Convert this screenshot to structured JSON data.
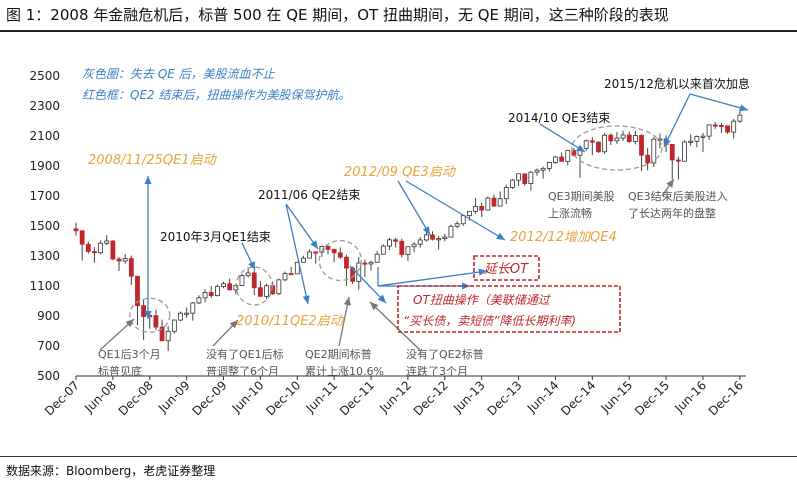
{
  "figure": {
    "title": "图 1：2008 年金融危机后，标普 500 在 QE 期间，OT 扭曲期间，无 QE 期间，这三种阶段的表现",
    "source": "数据来源：Bloomberg，老虎证券整理"
  },
  "colors": {
    "up": "#ffffff",
    "down": "#c0272d",
    "wick": "#444444",
    "blue_annotation": "#3d7fc6",
    "orange_annotation": "#e8a33a",
    "red_annotation": "#c0272d",
    "gray_annotation": "#555555",
    "dashed_circle": "#9a9a9a"
  },
  "chart_data": {
    "type": "candlestick",
    "title": "",
    "xlabel": "",
    "ylabel": "",
    "ylim": [
      500,
      2500
    ],
    "yticks": [
      500,
      700,
      900,
      1100,
      1300,
      1500,
      1700,
      1900,
      2100,
      2300,
      2500
    ],
    "xlim": [
      "2007-12",
      "2017-01"
    ],
    "xticks": [
      {
        "date": "2007-12",
        "label": "Dec-07"
      },
      {
        "date": "2008-06",
        "label": "Jun-08"
      },
      {
        "date": "2008-12",
        "label": "Dec-08"
      },
      {
        "date": "2009-06",
        "label": "Jun-09"
      },
      {
        "date": "2009-12",
        "label": "Dec-09"
      },
      {
        "date": "2010-06",
        "label": "Jun-10"
      },
      {
        "date": "2010-12",
        "label": "Dec-10"
      },
      {
        "date": "2011-06",
        "label": "Jun-11"
      },
      {
        "date": "2011-12",
        "label": "Dec-11"
      },
      {
        "date": "2012-06",
        "label": "Jun-12"
      },
      {
        "date": "2012-12",
        "label": "Dec-12"
      },
      {
        "date": "2013-06",
        "label": "Jun-13"
      },
      {
        "date": "2013-12",
        "label": "Dec-13"
      },
      {
        "date": "2014-06",
        "label": "Jun-14"
      },
      {
        "date": "2014-12",
        "label": "Dec-14"
      },
      {
        "date": "2015-06",
        "label": "Jun-15"
      },
      {
        "date": "2015-12",
        "label": "Dec-15"
      },
      {
        "date": "2016-06",
        "label": "Jun-16"
      },
      {
        "date": "2016-12",
        "label": "Dec-16"
      }
    ],
    "ohlc": [
      {
        "date": "2007-12",
        "o": 1481,
        "h": 1523,
        "l": 1435,
        "c": 1468
      },
      {
        "date": "2008-01",
        "o": 1468,
        "h": 1471,
        "l": 1270,
        "c": 1378
      },
      {
        "date": "2008-02",
        "o": 1378,
        "h": 1396,
        "l": 1316,
        "c": 1330
      },
      {
        "date": "2008-03",
        "o": 1330,
        "h": 1359,
        "l": 1256,
        "c": 1322
      },
      {
        "date": "2008-04",
        "o": 1322,
        "h": 1404,
        "l": 1312,
        "c": 1385
      },
      {
        "date": "2008-05",
        "o": 1385,
        "h": 1440,
        "l": 1373,
        "c": 1400
      },
      {
        "date": "2008-06",
        "o": 1400,
        "h": 1405,
        "l": 1272,
        "c": 1280
      },
      {
        "date": "2008-07",
        "o": 1280,
        "h": 1293,
        "l": 1200,
        "c": 1267
      },
      {
        "date": "2008-08",
        "o": 1267,
        "h": 1313,
        "l": 1249,
        "c": 1283
      },
      {
        "date": "2008-09",
        "o": 1283,
        "h": 1303,
        "l": 1107,
        "c": 1165
      },
      {
        "date": "2008-10",
        "o": 1165,
        "h": 1167,
        "l": 840,
        "c": 969
      },
      {
        "date": "2008-11",
        "o": 969,
        "h": 1007,
        "l": 741,
        "c": 896
      },
      {
        "date": "2008-12",
        "o": 896,
        "h": 918,
        "l": 815,
        "c": 903
      },
      {
        "date": "2009-01",
        "o": 903,
        "h": 943,
        "l": 805,
        "c": 826
      },
      {
        "date": "2009-02",
        "o": 826,
        "h": 876,
        "l": 735,
        "c": 735
      },
      {
        "date": "2009-03",
        "o": 735,
        "h": 832,
        "l": 667,
        "c": 798
      },
      {
        "date": "2009-04",
        "o": 798,
        "h": 877,
        "l": 783,
        "c": 873
      },
      {
        "date": "2009-05",
        "o": 873,
        "h": 930,
        "l": 866,
        "c": 919
      },
      {
        "date": "2009-06",
        "o": 919,
        "h": 956,
        "l": 888,
        "c": 919
      },
      {
        "date": "2009-07",
        "o": 919,
        "h": 993,
        "l": 869,
        "c": 987
      },
      {
        "date": "2009-08",
        "o": 987,
        "h": 1039,
        "l": 979,
        "c": 1021
      },
      {
        "date": "2009-09",
        "o": 1021,
        "h": 1080,
        "l": 992,
        "c": 1057
      },
      {
        "date": "2009-10",
        "o": 1057,
        "h": 1101,
        "l": 1020,
        "c": 1036
      },
      {
        "date": "2009-11",
        "o": 1036,
        "h": 1111,
        "l": 1030,
        "c": 1096
      },
      {
        "date": "2009-12",
        "o": 1096,
        "h": 1130,
        "l": 1085,
        "c": 1115
      },
      {
        "date": "2010-01",
        "o": 1115,
        "h": 1150,
        "l": 1071,
        "c": 1074
      },
      {
        "date": "2010-02",
        "o": 1074,
        "h": 1112,
        "l": 1044,
        "c": 1104
      },
      {
        "date": "2010-03",
        "o": 1104,
        "h": 1180,
        "l": 1101,
        "c": 1169
      },
      {
        "date": "2010-04",
        "o": 1169,
        "h": 1220,
        "l": 1157,
        "c": 1187
      },
      {
        "date": "2010-05",
        "o": 1187,
        "h": 1205,
        "l": 1040,
        "c": 1089
      },
      {
        "date": "2010-06",
        "o": 1089,
        "h": 1132,
        "l": 1028,
        "c": 1031
      },
      {
        "date": "2010-07",
        "o": 1031,
        "h": 1115,
        "l": 1011,
        "c": 1102
      },
      {
        "date": "2010-08",
        "o": 1102,
        "h": 1130,
        "l": 1040,
        "c": 1049
      },
      {
        "date": "2010-09",
        "o": 1049,
        "h": 1149,
        "l": 1040,
        "c": 1141
      },
      {
        "date": "2010-10",
        "o": 1141,
        "h": 1196,
        "l": 1131,
        "c": 1183
      },
      {
        "date": "2010-11",
        "o": 1183,
        "h": 1227,
        "l": 1173,
        "c": 1181
      },
      {
        "date": "2010-12",
        "o": 1181,
        "h": 1262,
        "l": 1180,
        "c": 1258
      },
      {
        "date": "2011-01",
        "o": 1258,
        "h": 1302,
        "l": 1257,
        "c": 1286
      },
      {
        "date": "2011-02",
        "o": 1286,
        "h": 1344,
        "l": 1289,
        "c": 1327
      },
      {
        "date": "2011-03",
        "o": 1327,
        "h": 1332,
        "l": 1249,
        "c": 1326
      },
      {
        "date": "2011-04",
        "o": 1326,
        "h": 1370,
        "l": 1294,
        "c": 1364
      },
      {
        "date": "2011-05",
        "o": 1364,
        "h": 1370,
        "l": 1311,
        "c": 1345
      },
      {
        "date": "2011-06",
        "o": 1345,
        "h": 1345,
        "l": 1258,
        "c": 1321
      },
      {
        "date": "2011-07",
        "o": 1321,
        "h": 1357,
        "l": 1282,
        "c": 1292
      },
      {
        "date": "2011-08",
        "o": 1292,
        "h": 1308,
        "l": 1101,
        "c": 1219
      },
      {
        "date": "2011-09",
        "o": 1219,
        "h": 1230,
        "l": 1114,
        "c": 1131
      },
      {
        "date": "2011-10",
        "o": 1131,
        "h": 1293,
        "l": 1075,
        "c": 1253
      },
      {
        "date": "2011-11",
        "o": 1253,
        "h": 1277,
        "l": 1159,
        "c": 1247
      },
      {
        "date": "2011-12",
        "o": 1247,
        "h": 1269,
        "l": 1202,
        "c": 1258
      },
      {
        "date": "2012-01",
        "o": 1258,
        "h": 1333,
        "l": 1258,
        "c": 1312
      },
      {
        "date": "2012-02",
        "o": 1312,
        "h": 1378,
        "l": 1312,
        "c": 1366
      },
      {
        "date": "2012-03",
        "o": 1366,
        "h": 1420,
        "l": 1340,
        "c": 1408
      },
      {
        "date": "2012-04",
        "o": 1408,
        "h": 1422,
        "l": 1357,
        "c": 1398
      },
      {
        "date": "2012-05",
        "o": 1398,
        "h": 1415,
        "l": 1291,
        "c": 1310
      },
      {
        "date": "2012-06",
        "o": 1310,
        "h": 1363,
        "l": 1267,
        "c": 1362
      },
      {
        "date": "2012-07",
        "o": 1362,
        "h": 1392,
        "l": 1325,
        "c": 1379
      },
      {
        "date": "2012-08",
        "o": 1379,
        "h": 1426,
        "l": 1355,
        "c": 1407
      },
      {
        "date": "2012-09",
        "o": 1407,
        "h": 1474,
        "l": 1396,
        "c": 1441
      },
      {
        "date": "2012-10",
        "o": 1441,
        "h": 1465,
        "l": 1403,
        "c": 1412
      },
      {
        "date": "2012-11",
        "o": 1412,
        "h": 1434,
        "l": 1343,
        "c": 1416
      },
      {
        "date": "2012-12",
        "o": 1416,
        "h": 1448,
        "l": 1398,
        "c": 1426
      },
      {
        "date": "2013-01",
        "o": 1426,
        "h": 1509,
        "l": 1426,
        "c": 1498
      },
      {
        "date": "2013-02",
        "o": 1498,
        "h": 1531,
        "l": 1485,
        "c": 1515
      },
      {
        "date": "2013-03",
        "o": 1515,
        "h": 1570,
        "l": 1501,
        "c": 1569
      },
      {
        "date": "2013-04",
        "o": 1569,
        "h": 1598,
        "l": 1536,
        "c": 1598
      },
      {
        "date": "2013-05",
        "o": 1598,
        "h": 1687,
        "l": 1581,
        "c": 1631
      },
      {
        "date": "2013-06",
        "o": 1631,
        "h": 1654,
        "l": 1560,
        "c": 1606
      },
      {
        "date": "2013-07",
        "o": 1606,
        "h": 1698,
        "l": 1604,
        "c": 1686
      },
      {
        "date": "2013-08",
        "o": 1686,
        "h": 1709,
        "l": 1627,
        "c": 1633
      },
      {
        "date": "2013-09",
        "o": 1633,
        "h": 1730,
        "l": 1633,
        "c": 1682
      },
      {
        "date": "2013-10",
        "o": 1682,
        "h": 1776,
        "l": 1646,
        "c": 1757
      },
      {
        "date": "2013-11",
        "o": 1757,
        "h": 1814,
        "l": 1746,
        "c": 1806
      },
      {
        "date": "2013-12",
        "o": 1806,
        "h": 1849,
        "l": 1768,
        "c": 1848
      },
      {
        "date": "2014-01",
        "o": 1848,
        "h": 1850,
        "l": 1770,
        "c": 1783
      },
      {
        "date": "2014-02",
        "o": 1783,
        "h": 1867,
        "l": 1737,
        "c": 1859
      },
      {
        "date": "2014-03",
        "o": 1859,
        "h": 1883,
        "l": 1835,
        "c": 1872
      },
      {
        "date": "2014-04",
        "o": 1872,
        "h": 1897,
        "l": 1815,
        "c": 1884
      },
      {
        "date": "2014-05",
        "o": 1884,
        "h": 1924,
        "l": 1863,
        "c": 1924
      },
      {
        "date": "2014-06",
        "o": 1924,
        "h": 1968,
        "l": 1915,
        "c": 1960
      },
      {
        "date": "2014-07",
        "o": 1960,
        "h": 1991,
        "l": 1930,
        "c": 1931
      },
      {
        "date": "2014-08",
        "o": 1931,
        "h": 2005,
        "l": 1905,
        "c": 2003
      },
      {
        "date": "2014-09",
        "o": 2003,
        "h": 2019,
        "l": 1964,
        "c": 1972
      },
      {
        "date": "2014-10",
        "o": 1972,
        "h": 2018,
        "l": 1821,
        "c": 2018
      },
      {
        "date": "2014-11",
        "o": 2018,
        "h": 2075,
        "l": 2001,
        "c": 2068
      },
      {
        "date": "2014-12",
        "o": 2068,
        "h": 2093,
        "l": 1972,
        "c": 2059
      },
      {
        "date": "2015-01",
        "o": 2059,
        "h": 2064,
        "l": 1988,
        "c": 1995
      },
      {
        "date": "2015-02",
        "o": 1995,
        "h": 2119,
        "l": 1980,
        "c": 2105
      },
      {
        "date": "2015-03",
        "o": 2105,
        "h": 2118,
        "l": 2040,
        "c": 2068
      },
      {
        "date": "2015-04",
        "o": 2068,
        "h": 2126,
        "l": 2048,
        "c": 2086
      },
      {
        "date": "2015-05",
        "o": 2086,
        "h": 2135,
        "l": 2067,
        "c": 2107
      },
      {
        "date": "2015-06",
        "o": 2107,
        "h": 2130,
        "l": 2056,
        "c": 2063
      },
      {
        "date": "2015-07",
        "o": 2063,
        "h": 2133,
        "l": 2044,
        "c": 2104
      },
      {
        "date": "2015-08",
        "o": 2104,
        "h": 2113,
        "l": 1867,
        "c": 1972
      },
      {
        "date": "2015-09",
        "o": 1972,
        "h": 2021,
        "l": 1872,
        "c": 1920
      },
      {
        "date": "2015-10",
        "o": 1920,
        "h": 2094,
        "l": 1893,
        "c": 2079
      },
      {
        "date": "2015-11",
        "o": 2079,
        "h": 2116,
        "l": 2019,
        "c": 2080
      },
      {
        "date": "2015-12",
        "o": 2080,
        "h": 2104,
        "l": 1993,
        "c": 2044
      },
      {
        "date": "2016-01",
        "o": 2044,
        "h": 2038,
        "l": 1812,
        "c": 1940
      },
      {
        "date": "2016-02",
        "o": 1940,
        "h": 1962,
        "l": 1810,
        "c": 1932
      },
      {
        "date": "2016-03",
        "o": 1932,
        "h": 2072,
        "l": 1937,
        "c": 2060
      },
      {
        "date": "2016-04",
        "o": 2060,
        "h": 2111,
        "l": 2033,
        "c": 2065
      },
      {
        "date": "2016-05",
        "o": 2065,
        "h": 2103,
        "l": 2025,
        "c": 2097
      },
      {
        "date": "2016-06",
        "o": 2097,
        "h": 2120,
        "l": 1992,
        "c": 2099
      },
      {
        "date": "2016-07",
        "o": 2099,
        "h": 2178,
        "l": 2074,
        "c": 2174
      },
      {
        "date": "2016-08",
        "o": 2174,
        "h": 2193,
        "l": 2148,
        "c": 2171
      },
      {
        "date": "2016-09",
        "o": 2171,
        "h": 2187,
        "l": 2120,
        "c": 2168
      },
      {
        "date": "2016-10",
        "o": 2168,
        "h": 2169,
        "l": 2114,
        "c": 2126
      },
      {
        "date": "2016-11",
        "o": 2126,
        "h": 2214,
        "l": 2084,
        "c": 2199
      },
      {
        "date": "2016-12",
        "o": 2199,
        "h": 2278,
        "l": 2188,
        "c": 2239
      }
    ],
    "legend_notes": [
      "灰色圈：失去 QE 后，美股流血不止",
      "红色框：QE2 结束后，扭曲操作为美股保驾护航。"
    ],
    "event_labels": [
      {
        "text": "2008/11/25QE1启动",
        "color": "orange"
      },
      {
        "text": "2010年3月QE1结束",
        "color": "black"
      },
      {
        "text": "2011/06 QE2结束",
        "color": "black"
      },
      {
        "text": "2010/11QE2启动",
        "color": "orange"
      },
      {
        "text": "2012/09 QE3启动",
        "color": "orange"
      },
      {
        "text": "2012/12增加QE4",
        "color": "orange"
      },
      {
        "text": "2014/10 QE3结束",
        "color": "black"
      },
      {
        "text": "2015/12危机以来首次加息",
        "color": "black"
      }
    ],
    "boxed_labels": [
      {
        "text": "延长OT",
        "color": "red"
      }
    ],
    "ot_box_lines": [
      "OT扭曲操作（美联储通过",
      "“买长债，卖短债”降低长期利率)"
    ],
    "gray_notes": [
      [
        "QE1后3个月",
        "标普见底"
      ],
      [
        "没有了QE1后标",
        "普调整了6个月"
      ],
      [
        "QE2期间标普",
        "累计上涨10.6%"
      ],
      [
        "没有了QE2标普",
        "连跌了3个月"
      ],
      [
        "QE3期间美股",
        "上涨流畅"
      ],
      [
        "QE3结束后美股进入",
        "了长达两年的盘整"
      ]
    ]
  }
}
